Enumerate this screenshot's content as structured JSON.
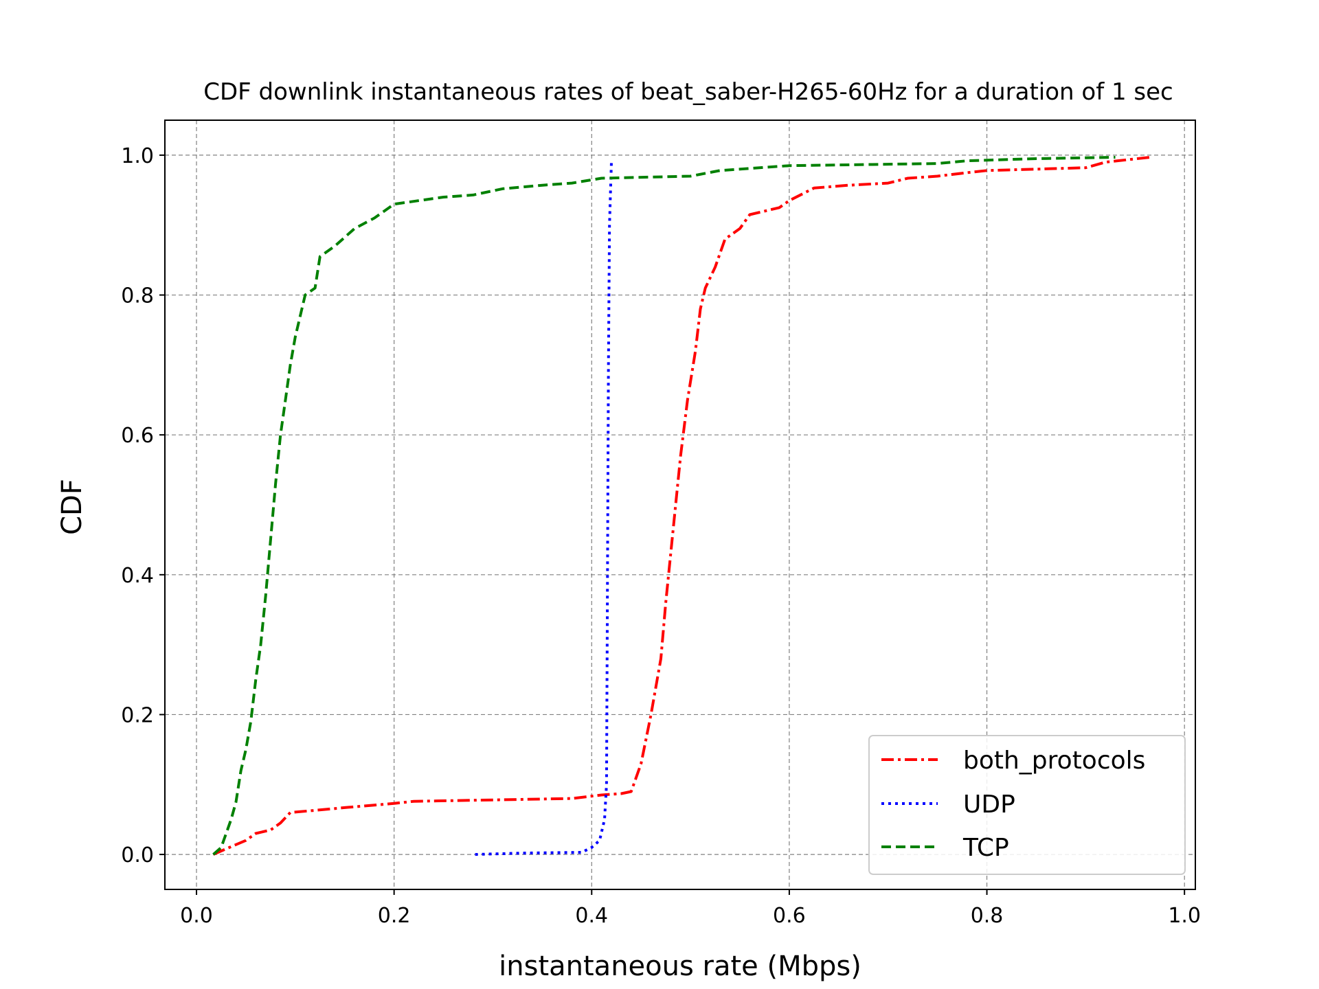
{
  "chart_data": {
    "type": "line",
    "title": "CDF downlink instantaneous rates of beat_saber-H265-60Hz for a duration of 1 sec",
    "xlabel": "instantaneous rate (Mbps)",
    "ylabel": "CDF",
    "xlim": [
      -0.032,
      1.011
    ],
    "ylim": [
      -0.05,
      1.05
    ],
    "xticks": [
      "0.0",
      "0.2",
      "0.4",
      "0.6",
      "0.8",
      "1.0"
    ],
    "yticks": [
      "0.0",
      "0.2",
      "0.4",
      "0.6",
      "0.8",
      "1.0"
    ],
    "grid": true,
    "legend_position": "lower-right",
    "series": [
      {
        "name": "both_protocols",
        "color": "#ff0000",
        "style": "dashdot",
        "points": [
          [
            0.017,
            0.0
          ],
          [
            0.03,
            0.008
          ],
          [
            0.05,
            0.02
          ],
          [
            0.06,
            0.03
          ],
          [
            0.075,
            0.035
          ],
          [
            0.085,
            0.045
          ],
          [
            0.095,
            0.06
          ],
          [
            0.12,
            0.063
          ],
          [
            0.15,
            0.067
          ],
          [
            0.2,
            0.073
          ],
          [
            0.22,
            0.076
          ],
          [
            0.3,
            0.078
          ],
          [
            0.38,
            0.08
          ],
          [
            0.41,
            0.085
          ],
          [
            0.43,
            0.087
          ],
          [
            0.44,
            0.09
          ],
          [
            0.45,
            0.13
          ],
          [
            0.46,
            0.2
          ],
          [
            0.47,
            0.28
          ],
          [
            0.475,
            0.36
          ],
          [
            0.48,
            0.43
          ],
          [
            0.485,
            0.5
          ],
          [
            0.49,
            0.57
          ],
          [
            0.497,
            0.65
          ],
          [
            0.505,
            0.72
          ],
          [
            0.51,
            0.78
          ],
          [
            0.515,
            0.81
          ],
          [
            0.525,
            0.84
          ],
          [
            0.53,
            0.86
          ],
          [
            0.535,
            0.88
          ],
          [
            0.55,
            0.895
          ],
          [
            0.56,
            0.915
          ],
          [
            0.59,
            0.925
          ],
          [
            0.6,
            0.935
          ],
          [
            0.625,
            0.953
          ],
          [
            0.66,
            0.957
          ],
          [
            0.7,
            0.96
          ],
          [
            0.72,
            0.967
          ],
          [
            0.75,
            0.97
          ],
          [
            0.78,
            0.975
          ],
          [
            0.8,
            0.978
          ],
          [
            0.9,
            0.982
          ],
          [
            0.92,
            0.99
          ],
          [
            0.965,
            0.997
          ]
        ]
      },
      {
        "name": "UDP",
        "color": "#0000ff",
        "style": "dotted",
        "points": [
          [
            0.282,
            0.0
          ],
          [
            0.33,
            0.002
          ],
          [
            0.39,
            0.003
          ],
          [
            0.4,
            0.01
          ],
          [
            0.408,
            0.02
          ],
          [
            0.413,
            0.05
          ],
          [
            0.415,
            0.1
          ],
          [
            0.416,
            0.4
          ],
          [
            0.417,
            0.7
          ],
          [
            0.418,
            0.9
          ],
          [
            0.42,
            0.99
          ]
        ]
      },
      {
        "name": "TCP",
        "color": "#008000",
        "style": "dashed",
        "points": [
          [
            0.017,
            0.0
          ],
          [
            0.025,
            0.01
          ],
          [
            0.03,
            0.03
          ],
          [
            0.035,
            0.05
          ],
          [
            0.04,
            0.075
          ],
          [
            0.045,
            0.12
          ],
          [
            0.05,
            0.15
          ],
          [
            0.055,
            0.19
          ],
          [
            0.06,
            0.25
          ],
          [
            0.065,
            0.3
          ],
          [
            0.07,
            0.37
          ],
          [
            0.075,
            0.45
          ],
          [
            0.08,
            0.53
          ],
          [
            0.085,
            0.6
          ],
          [
            0.09,
            0.65
          ],
          [
            0.095,
            0.7
          ],
          [
            0.1,
            0.74
          ],
          [
            0.105,
            0.77
          ],
          [
            0.11,
            0.8
          ],
          [
            0.12,
            0.81
          ],
          [
            0.125,
            0.855
          ],
          [
            0.14,
            0.87
          ],
          [
            0.16,
            0.895
          ],
          [
            0.18,
            0.91
          ],
          [
            0.2,
            0.93
          ],
          [
            0.25,
            0.94
          ],
          [
            0.28,
            0.943
          ],
          [
            0.31,
            0.952
          ],
          [
            0.35,
            0.957
          ],
          [
            0.38,
            0.96
          ],
          [
            0.41,
            0.967
          ],
          [
            0.5,
            0.97
          ],
          [
            0.53,
            0.978
          ],
          [
            0.6,
            0.985
          ],
          [
            0.75,
            0.988
          ],
          [
            0.78,
            0.992
          ],
          [
            0.85,
            0.995
          ],
          [
            0.93,
            0.997
          ]
        ]
      }
    ]
  }
}
